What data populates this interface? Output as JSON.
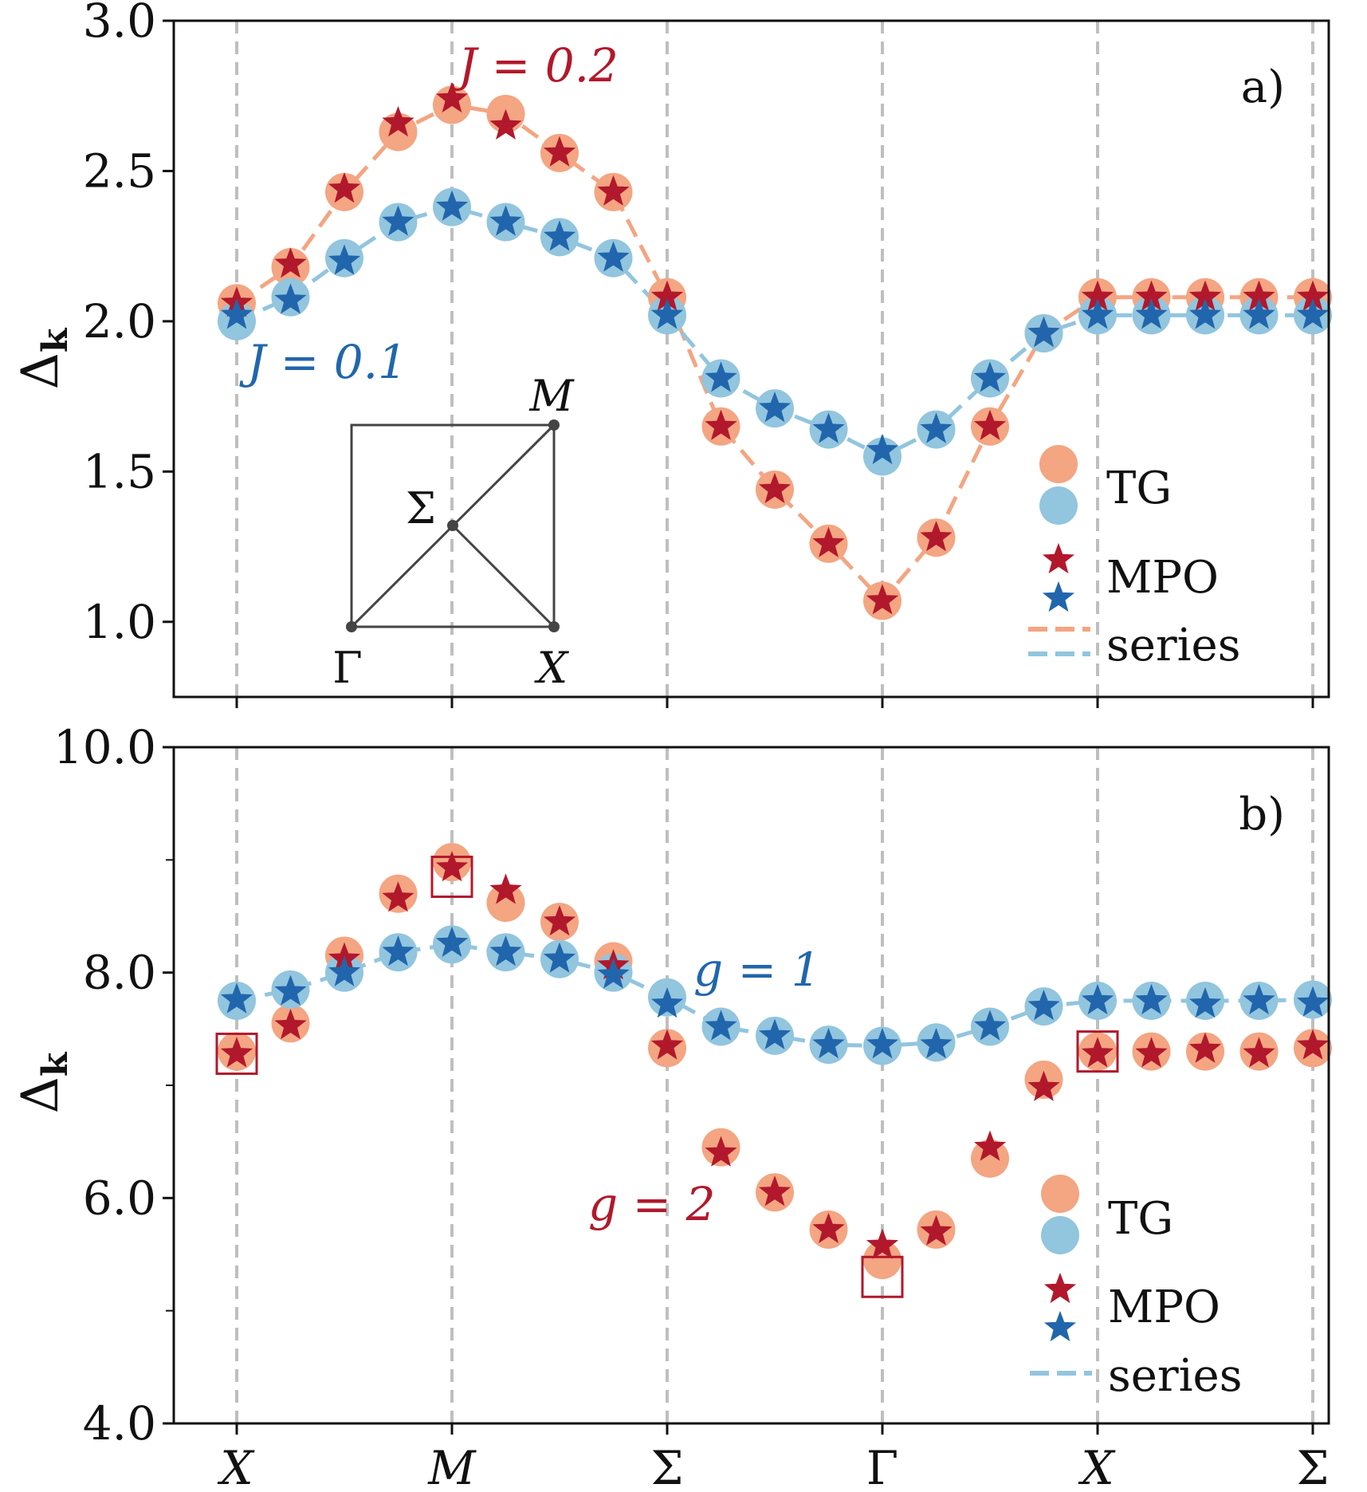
{
  "chart_data": [
    {
      "type": "scatter+line",
      "panel_tag": "a)",
      "ylabel": "Δ",
      "ylabel_sub": "k",
      "ylim": [
        0.75,
        3.0
      ],
      "yticks": [
        1.0,
        1.5,
        2.0,
        2.5,
        3.0
      ],
      "ytick_labels": [
        "1.0",
        "1.5",
        "2.0",
        "2.5",
        "3.0"
      ],
      "x_high_symmetry": [
        0,
        4,
        8,
        12,
        16,
        20
      ],
      "x_high_symmetry_labels": [
        "X",
        "M",
        "Σ",
        "Γ",
        "X",
        "Σ"
      ],
      "series": [
        {
          "name": "J = 0.2",
          "color": "#f4a582",
          "star_color": "#b2182b",
          "tg": [
            [
              0,
              2.06
            ],
            [
              1,
              2.18
            ],
            [
              2,
              2.43
            ],
            [
              3,
              2.63
            ],
            [
              4,
              2.72
            ],
            [
              5,
              2.69
            ],
            [
              6,
              2.56
            ],
            [
              7,
              2.43
            ],
            [
              8,
              2.08
            ],
            [
              9,
              1.65
            ],
            [
              10,
              1.44
            ],
            [
              11,
              1.26
            ],
            [
              12,
              1.07
            ],
            [
              13,
              1.28
            ],
            [
              14,
              1.65
            ],
            [
              15,
              1.96
            ],
            [
              16,
              2.08
            ],
            [
              17,
              2.08
            ],
            [
              18,
              2.08
            ],
            [
              19,
              2.08
            ],
            [
              20,
              2.08
            ]
          ],
          "mpo": [
            [
              0,
              2.06
            ],
            [
              1,
              2.19
            ],
            [
              2,
              2.44
            ],
            [
              3,
              2.66
            ],
            [
              4,
              2.74
            ],
            [
              5,
              2.65
            ],
            [
              6,
              2.56
            ],
            [
              7,
              2.43
            ],
            [
              8,
              2.08
            ],
            [
              9,
              1.65
            ],
            [
              10,
              1.44
            ],
            [
              11,
              1.26
            ],
            [
              12,
              1.07
            ],
            [
              13,
              1.28
            ],
            [
              14,
              1.65
            ],
            [
              15,
              1.96
            ],
            [
              16,
              2.08
            ],
            [
              17,
              2.08
            ],
            [
              18,
              2.08
            ],
            [
              19,
              2.08
            ],
            [
              20,
              2.08
            ]
          ]
        },
        {
          "name": "J = 0.1",
          "color": "#92c5de",
          "star_color": "#2166ac",
          "tg": [
            [
              0,
              2.0
            ],
            [
              1,
              2.08
            ],
            [
              2,
              2.21
            ],
            [
              3,
              2.33
            ],
            [
              4,
              2.38
            ],
            [
              5,
              2.33
            ],
            [
              6,
              2.28
            ],
            [
              7,
              2.21
            ],
            [
              8,
              2.02
            ],
            [
              9,
              1.81
            ],
            [
              10,
              1.71
            ],
            [
              11,
              1.64
            ],
            [
              12,
              1.55
            ],
            [
              13,
              1.64
            ],
            [
              14,
              1.81
            ],
            [
              15,
              1.96
            ],
            [
              16,
              2.02
            ],
            [
              17,
              2.02
            ],
            [
              18,
              2.02
            ],
            [
              19,
              2.02
            ],
            [
              20,
              2.02
            ]
          ],
          "mpo": [
            [
              0,
              2.02
            ],
            [
              1,
              2.07
            ],
            [
              2,
              2.2
            ],
            [
              3,
              2.33
            ],
            [
              4,
              2.38
            ],
            [
              5,
              2.33
            ],
            [
              6,
              2.28
            ],
            [
              7,
              2.21
            ],
            [
              8,
              2.02
            ],
            [
              9,
              1.81
            ],
            [
              10,
              1.71
            ],
            [
              11,
              1.64
            ],
            [
              12,
              1.57
            ],
            [
              13,
              1.64
            ],
            [
              14,
              1.81
            ],
            [
              15,
              1.96
            ],
            [
              16,
              2.02
            ],
            [
              17,
              2.02
            ],
            [
              18,
              2.02
            ],
            [
              19,
              2.02
            ],
            [
              20,
              2.02
            ]
          ]
        }
      ],
      "annotations": [
        "J = 0.2",
        "J = 0.1"
      ],
      "inset_labels": [
        "M",
        "Σ",
        "Γ",
        "X"
      ],
      "legend": [
        "TG",
        "MPO",
        "series"
      ],
      "legend_position": "lower-right"
    },
    {
      "type": "scatter+line",
      "panel_tag": "b)",
      "ylabel": "Δ",
      "ylabel_sub": "k",
      "ylim": [
        4.0,
        10.0
      ],
      "yticks": [
        4.0,
        6.0,
        8.0,
        10.0
      ],
      "ytick_labels": [
        "4.0",
        "6.0",
        "8.0",
        "10.0"
      ],
      "x_high_symmetry": [
        0,
        4,
        8,
        12,
        16,
        20
      ],
      "x_high_symmetry_labels": [
        "X",
        "M",
        "Σ",
        "Γ",
        "X",
        "Σ"
      ],
      "series": [
        {
          "name": "g = 2",
          "color": "#f4a582",
          "star_color": "#b2182b",
          "tg": [
            [
              0,
              7.3
            ],
            [
              1,
              7.55
            ],
            [
              2,
              8.15
            ],
            [
              3,
              8.7
            ],
            [
              4,
              8.98
            ],
            [
              5,
              8.62
            ],
            [
              6,
              8.45
            ],
            [
              7,
              8.1
            ],
            [
              8,
              7.33
            ],
            [
              9,
              6.45
            ],
            [
              10,
              6.05
            ],
            [
              11,
              5.72
            ],
            [
              12,
              5.45
            ],
            [
              13,
              5.72
            ],
            [
              14,
              6.35
            ],
            [
              15,
              7.05
            ],
            [
              16,
              7.3
            ],
            [
              17,
              7.3
            ],
            [
              18,
              7.3
            ],
            [
              19,
              7.3
            ],
            [
              20,
              7.33
            ]
          ],
          "mpo": [
            [
              0,
              7.28
            ],
            [
              1,
              7.53
            ],
            [
              2,
              8.12
            ],
            [
              3,
              8.66
            ],
            [
              4,
              8.93
            ],
            [
              5,
              8.73
            ],
            [
              6,
              8.45
            ],
            [
              7,
              8.06
            ],
            [
              8,
              7.35
            ],
            [
              9,
              6.4
            ],
            [
              10,
              6.05
            ],
            [
              11,
              5.72
            ],
            [
              12,
              5.58
            ],
            [
              13,
              5.7
            ],
            [
              14,
              6.45
            ],
            [
              15,
              6.98
            ],
            [
              16,
              7.28
            ],
            [
              17,
              7.28
            ],
            [
              18,
              7.32
            ],
            [
              19,
              7.28
            ],
            [
              20,
              7.35
            ]
          ]
        },
        {
          "name": "g = 1",
          "color": "#92c5de",
          "star_color": "#2166ac",
          "tg": [
            [
              0,
              7.75
            ],
            [
              1,
              7.85
            ],
            [
              2,
              8.0
            ],
            [
              3,
              8.18
            ],
            [
              4,
              8.25
            ],
            [
              5,
              8.18
            ],
            [
              6,
              8.12
            ],
            [
              7,
              8.0
            ],
            [
              8,
              7.78
            ],
            [
              9,
              7.52
            ],
            [
              10,
              7.44
            ],
            [
              11,
              7.36
            ],
            [
              12,
              7.35
            ],
            [
              13,
              7.38
            ],
            [
              14,
              7.52
            ],
            [
              15,
              7.7
            ],
            [
              16,
              7.75
            ],
            [
              17,
              7.75
            ],
            [
              18,
              7.75
            ],
            [
              19,
              7.75
            ],
            [
              20,
              7.76
            ]
          ],
          "mpo": [
            [
              0,
              7.76
            ],
            [
              1,
              7.83
            ],
            [
              2,
              8.0
            ],
            [
              3,
              8.18
            ],
            [
              4,
              8.26
            ],
            [
              5,
              8.18
            ],
            [
              6,
              8.12
            ],
            [
              7,
              7.98
            ],
            [
              8,
              7.72
            ],
            [
              9,
              7.52
            ],
            [
              10,
              7.44
            ],
            [
              11,
              7.36
            ],
            [
              12,
              7.36
            ],
            [
              13,
              7.36
            ],
            [
              14,
              7.52
            ],
            [
              15,
              7.7
            ],
            [
              16,
              7.75
            ],
            [
              17,
              7.75
            ],
            [
              18,
              7.72
            ],
            [
              19,
              7.75
            ],
            [
              20,
              7.73
            ]
          ]
        }
      ],
      "highlight_boxes": [
        [
          0,
          7.28
        ],
        [
          4,
          8.85
        ],
        [
          12,
          5.3
        ],
        [
          16,
          7.3
        ]
      ],
      "annotations": [
        "g = 1",
        "g = 2"
      ],
      "legend": [
        "TG",
        "MPO",
        "series"
      ],
      "legend_position": "lower-right"
    }
  ]
}
